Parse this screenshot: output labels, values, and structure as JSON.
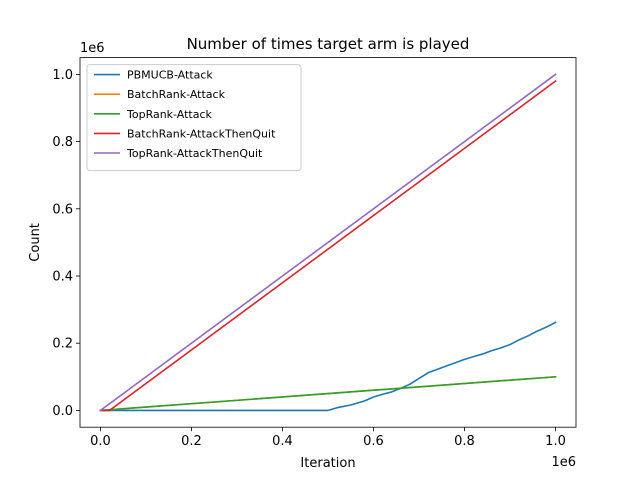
{
  "chart_data": {
    "type": "line",
    "title": "Number of times target arm is played",
    "xlabel": "Iteration",
    "ylabel": "Count",
    "x_offset_label": "1e6",
    "y_offset_label": "1e6",
    "xlim": [
      -0.045,
      1.045
    ],
    "ylim": [
      -0.05,
      1.05
    ],
    "x_ticks": [
      0.0,
      0.2,
      0.4,
      0.6,
      0.8,
      1.0
    ],
    "x_tick_labels": [
      "0.0",
      "0.2",
      "0.4",
      "0.6",
      "0.8",
      "1.0"
    ],
    "y_ticks": [
      0.0,
      0.2,
      0.4,
      0.6,
      0.8,
      1.0
    ],
    "y_tick_labels": [
      "0.0",
      "0.2",
      "0.4",
      "0.6",
      "0.8",
      "1.0"
    ],
    "grid": false,
    "legend_position": "top-left",
    "series": [
      {
        "name": "PBMUCB-Attack",
        "color": "#1f77b4",
        "x": [
          0.0,
          0.1,
          0.2,
          0.3,
          0.4,
          0.5,
          0.52,
          0.55,
          0.58,
          0.6,
          0.62,
          0.64,
          0.66,
          0.68,
          0.7,
          0.72,
          0.74,
          0.76,
          0.78,
          0.8,
          0.82,
          0.84,
          0.86,
          0.88,
          0.9,
          0.92,
          0.94,
          0.96,
          0.98,
          1.0
        ],
        "y": [
          0.0,
          0.0,
          0.0,
          0.0,
          0.0,
          0.0,
          0.008,
          0.016,
          0.028,
          0.04,
          0.048,
          0.055,
          0.066,
          0.078,
          0.095,
          0.112,
          0.122,
          0.132,
          0.142,
          0.152,
          0.16,
          0.168,
          0.178,
          0.186,
          0.196,
          0.21,
          0.222,
          0.236,
          0.248,
          0.262
        ]
      },
      {
        "name": "BatchRank-Attack",
        "color": "#ff7f0e",
        "x": [
          0.0,
          1.0
        ],
        "y": [
          0.0,
          0.1
        ]
      },
      {
        "name": "TopRank-Attack",
        "color": "#2ca02c",
        "x": [
          0.0,
          1.0
        ],
        "y": [
          0.0,
          0.1
        ]
      },
      {
        "name": "BatchRank-AttackThenQuit",
        "color": "#d62728",
        "x": [
          0.0,
          0.02,
          1.0
        ],
        "y": [
          0.0,
          0.0,
          0.98
        ]
      },
      {
        "name": "TopRank-AttackThenQuit",
        "color": "#9467bd",
        "x": [
          0.0,
          1.0
        ],
        "y": [
          0.0,
          1.0
        ]
      }
    ]
  }
}
